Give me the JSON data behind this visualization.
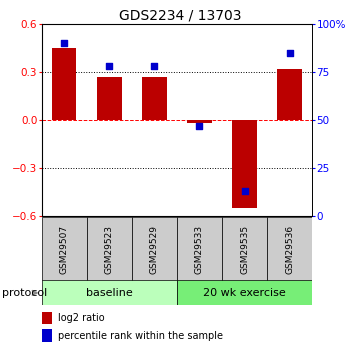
{
  "title": "GDS2234 / 13703",
  "samples": [
    "GSM29507",
    "GSM29523",
    "GSM29529",
    "GSM29533",
    "GSM29535",
    "GSM29536"
  ],
  "log2_ratio": [
    0.45,
    0.27,
    0.27,
    -0.02,
    -0.55,
    0.32
  ],
  "percentile_rank": [
    90,
    78,
    78,
    47,
    13,
    85
  ],
  "ylim_left": [
    -0.6,
    0.6
  ],
  "ylim_right": [
    0,
    100
  ],
  "yticks_left": [
    -0.6,
    -0.3,
    0.0,
    0.3,
    0.6
  ],
  "yticks_right": [
    0,
    25,
    50,
    75,
    100
  ],
  "ytick_labels_right": [
    "0",
    "25",
    "50",
    "75",
    "100%"
  ],
  "bar_color": "#bb0000",
  "dot_color": "#0000cc",
  "background_color": "#ffffff",
  "sample_box_color": "#cccccc",
  "groups": [
    {
      "label": "baseline",
      "start": 0,
      "end": 3,
      "color": "#bbffbb"
    },
    {
      "label": "20 wk exercise",
      "start": 3,
      "end": 6,
      "color": "#77ee77"
    }
  ],
  "protocol_label": "protocol",
  "legend_items": [
    {
      "label": "log2 ratio",
      "color": "#bb0000",
      "marker": "s"
    },
    {
      "label": "percentile rank within the sample",
      "color": "#0000cc",
      "marker": "s"
    }
  ],
  "bar_width": 0.55,
  "dot_size": 25,
  "title_fontsize": 10,
  "tick_fontsize": 7.5,
  "sample_fontsize": 6.5,
  "group_fontsize": 8,
  "legend_fontsize": 7,
  "protocol_fontsize": 8
}
